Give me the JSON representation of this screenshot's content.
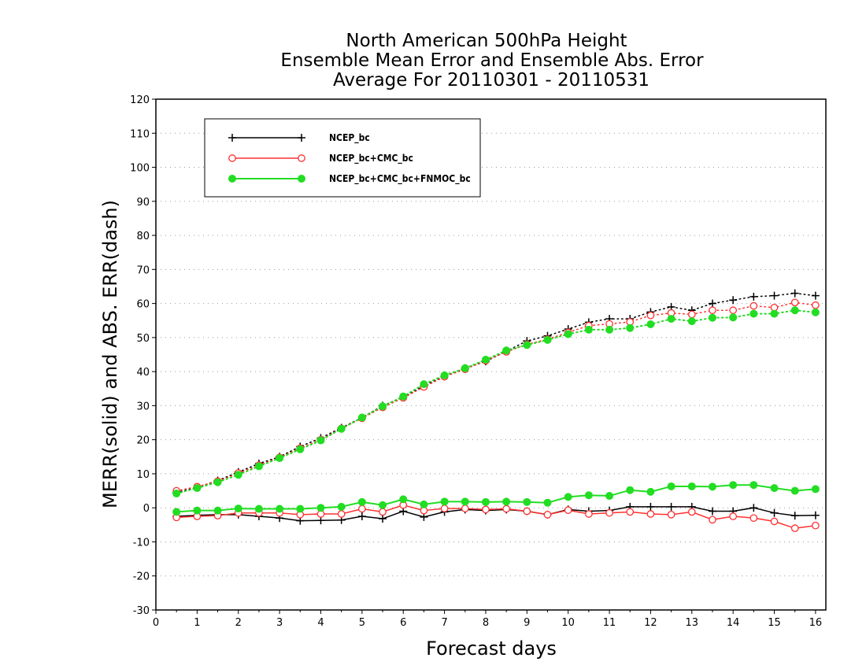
{
  "chart_data": {
    "type": "line",
    "title": [
      "North American 500hPa Height",
      "Ensemble Mean Error and Ensemble Abs. Error",
      "Average For 20110301 - 20110531"
    ],
    "xlabel": "Forecast days",
    "ylabel": "MERR(solid) and ABS. ERR(dash)",
    "xlim": [
      0,
      16.25
    ],
    "ylim": [
      -30,
      120
    ],
    "xticks": [
      0,
      1,
      2,
      3,
      4,
      5,
      6,
      7,
      8,
      9,
      10,
      11,
      12,
      13,
      14,
      15,
      16
    ],
    "xtick_labels": [
      "0",
      "1",
      "2",
      "3",
      "4",
      "5",
      "6",
      "7",
      "8",
      "9",
      "10",
      "11",
      "12",
      "13",
      "14",
      "15",
      "16"
    ],
    "yticks": [
      -30,
      -20,
      -10,
      0,
      10,
      20,
      30,
      40,
      50,
      60,
      70,
      80,
      90,
      100,
      110,
      120
    ],
    "ytick_labels": [
      "-30",
      "-20",
      "-10",
      "0",
      "10",
      "20",
      "30",
      "40",
      "50",
      "60",
      "70",
      "80",
      "90",
      "100",
      "110",
      "120"
    ],
    "grid": "horizontal dotted",
    "legend_position": "top-left",
    "x": [
      0.5,
      1.0,
      1.5,
      2.0,
      2.5,
      3.0,
      3.5,
      4.0,
      4.5,
      5.0,
      5.5,
      6.0,
      6.5,
      7.0,
      7.5,
      8.0,
      8.5,
      9.0,
      9.5,
      10.0,
      10.5,
      11.0,
      11.5,
      12.0,
      12.5,
      13.0,
      13.5,
      14.0,
      14.5,
      15.0,
      15.5,
      16.0
    ],
    "series": [
      {
        "name": "NCEP_bc",
        "color": "#000000",
        "marker": "plus",
        "merr": [
          -2.5,
          -2.2,
          -2.0,
          -2.0,
          -2.5,
          -3.0,
          -3.8,
          -3.7,
          -3.6,
          -2.5,
          -3.2,
          -1.0,
          -2.7,
          -1.2,
          -0.5,
          -0.8,
          -0.5,
          -1.0,
          -2.0,
          -0.5,
          -1.0,
          -0.8,
          0.3,
          0.3,
          0.3,
          0.3,
          -1.0,
          -1.0,
          0.0,
          -1.5,
          -2.3,
          -2.2
        ],
        "abs_err": [
          4.5,
          6.0,
          8.0,
          10.5,
          13.0,
          15.0,
          18.0,
          20.5,
          23.5,
          26.5,
          30.0,
          32.5,
          35.8,
          38.7,
          41.0,
          43.0,
          46.0,
          49.0,
          50.5,
          52.5,
          54.5,
          55.5,
          55.5,
          57.5,
          59.0,
          58.0,
          60.0,
          61.0,
          62.0,
          62.3,
          63.0,
          62.3
        ]
      },
      {
        "name": "NCEP_bc+CMC_bc",
        "color": "#ff3030",
        "marker": "open-circle",
        "merr": [
          -2.8,
          -2.5,
          -2.3,
          -1.5,
          -1.5,
          -1.5,
          -2.0,
          -1.8,
          -1.8,
          -0.3,
          -1.2,
          0.8,
          -0.8,
          -0.2,
          -0.2,
          -0.5,
          -0.3,
          -1.0,
          -2.0,
          -0.7,
          -1.8,
          -1.5,
          -1.2,
          -1.8,
          -2.0,
          -1.2,
          -3.5,
          -2.5,
          -3.0,
          -4.0,
          -6.0,
          -5.2
        ],
        "abs_err": [
          5.0,
          6.2,
          7.8,
          10.2,
          12.5,
          14.8,
          17.5,
          20.0,
          23.3,
          26.3,
          29.5,
          32.3,
          35.5,
          38.5,
          40.7,
          43.2,
          45.8,
          48.0,
          49.5,
          51.5,
          53.5,
          54.0,
          54.6,
          56.5,
          57.2,
          56.8,
          58.0,
          58.0,
          59.3,
          58.8,
          60.3,
          59.5
        ]
      },
      {
        "name": "NCEP_bc+CMC_bc+FNMOC_bc",
        "color": "#22dd22",
        "marker": "filled-circle",
        "merr": [
          -1.2,
          -0.8,
          -0.8,
          -0.2,
          -0.3,
          -0.3,
          -0.3,
          0.0,
          0.3,
          1.7,
          0.8,
          2.5,
          1.0,
          1.8,
          1.8,
          1.7,
          1.8,
          1.7,
          1.5,
          3.2,
          3.7,
          3.5,
          5.2,
          4.7,
          6.3,
          6.3,
          6.2,
          6.7,
          6.7,
          5.8,
          5.0,
          5.5
        ],
        "abs_err": [
          4.2,
          5.8,
          7.5,
          9.7,
          12.2,
          14.6,
          17.2,
          19.8,
          23.2,
          26.5,
          29.8,
          32.7,
          36.3,
          38.9,
          41.0,
          43.5,
          46.2,
          47.8,
          49.3,
          51.0,
          52.3,
          52.3,
          52.8,
          53.9,
          55.5,
          54.8,
          55.8,
          55.9,
          57.0,
          57.0,
          58.0,
          57.4
        ]
      }
    ]
  }
}
